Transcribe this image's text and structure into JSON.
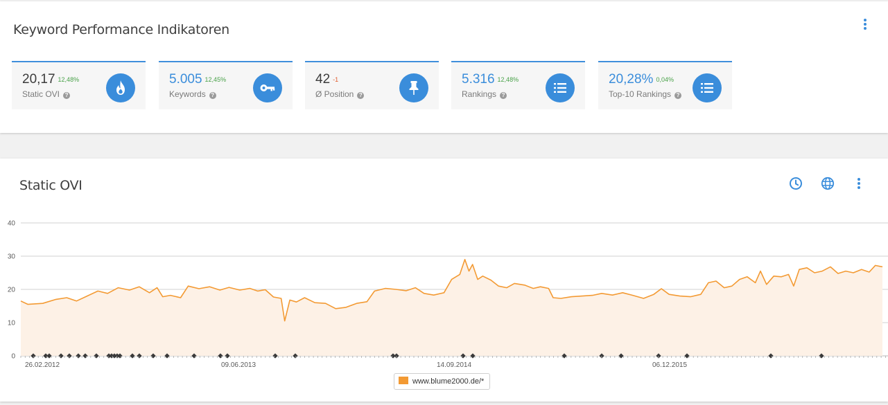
{
  "kpi": {
    "title": "Keyword Performance Indikatoren",
    "tiles": [
      {
        "value": "20,17",
        "delta": "12,48%",
        "label": "Static OVI",
        "icon": "flame-icon",
        "value_color": "dark"
      },
      {
        "value": "5.005",
        "delta": "12,45%",
        "label": "Keywords",
        "icon": "key-icon",
        "value_color": "blue"
      },
      {
        "value": "42",
        "delta": "-1",
        "label": "Ø Position",
        "icon": "pin-icon",
        "value_color": "dark"
      },
      {
        "value": "5.316",
        "delta": "12,48%",
        "label": "Rankings",
        "icon": "list-icon",
        "value_color": "blue"
      },
      {
        "value": "20,28%",
        "delta": "0,04%",
        "label": "Top-10 Rankings",
        "icon": "list-icon",
        "value_color": "blue"
      }
    ]
  },
  "chart_section": {
    "title": "Static OVI",
    "controls": [
      "clock-icon",
      "globe-icon",
      "more-vert-icon"
    ],
    "legend_label": "www.blume2000.de/*"
  },
  "colors": {
    "accent": "#3a8ddb",
    "series": "#f39a33",
    "fill": "#fdf1e6",
    "positive": "#48a148",
    "negative": "#e05b2c"
  },
  "chart_data": {
    "type": "area",
    "title": "",
    "xlabel": "",
    "ylabel": "",
    "ylim": [
      0,
      40
    ],
    "yticks": [
      0,
      10,
      20,
      30,
      40
    ],
    "x_tick_labels": [
      "26.02.2012",
      "09.06.2013",
      "14.09.2014",
      "06.12.2015"
    ],
    "x_start": "2012-02-01",
    "x_end": "2016-09-15",
    "series": [
      {
        "name": "www.blume2000.de/*",
        "points": [
          [
            "2012-02-01",
            16.5
          ],
          [
            "2012-02-15",
            15.5
          ],
          [
            "2012-03-15",
            15.8
          ],
          [
            "2012-04-10",
            17.0
          ],
          [
            "2012-05-01",
            17.5
          ],
          [
            "2012-05-20",
            16.5
          ],
          [
            "2012-06-10",
            18.0
          ],
          [
            "2012-07-01",
            19.5
          ],
          [
            "2012-07-20",
            18.8
          ],
          [
            "2012-08-10",
            20.5
          ],
          [
            "2012-09-01",
            19.8
          ],
          [
            "2012-09-20",
            20.8
          ],
          [
            "2012-10-10",
            19.0
          ],
          [
            "2012-10-25",
            20.5
          ],
          [
            "2012-11-05",
            17.8
          ],
          [
            "2012-11-20",
            18.2
          ],
          [
            "2012-12-10",
            17.5
          ],
          [
            "2012-12-25",
            21.0
          ],
          [
            "2013-01-15",
            20.2
          ],
          [
            "2013-02-05",
            20.8
          ],
          [
            "2013-02-25",
            19.8
          ],
          [
            "2013-03-15",
            20.6
          ],
          [
            "2013-04-05",
            19.8
          ],
          [
            "2013-04-25",
            20.3
          ],
          [
            "2013-05-10",
            19.5
          ],
          [
            "2013-05-25",
            19.9
          ],
          [
            "2013-06-10",
            17.7
          ],
          [
            "2013-06-25",
            17.3
          ],
          [
            "2013-07-02",
            10.5
          ],
          [
            "2013-07-12",
            16.8
          ],
          [
            "2013-07-25",
            16.2
          ],
          [
            "2013-08-10",
            17.5
          ],
          [
            "2013-08-30",
            16.0
          ],
          [
            "2013-09-20",
            15.8
          ],
          [
            "2013-10-10",
            14.2
          ],
          [
            "2013-10-30",
            14.6
          ],
          [
            "2013-11-20",
            15.8
          ],
          [
            "2013-12-10",
            16.3
          ],
          [
            "2013-12-25",
            19.5
          ],
          [
            "2014-01-15",
            20.3
          ],
          [
            "2014-02-05",
            20.0
          ],
          [
            "2014-02-25",
            19.6
          ],
          [
            "2014-03-15",
            20.5
          ],
          [
            "2014-04-01",
            18.8
          ],
          [
            "2014-04-20",
            18.3
          ],
          [
            "2014-05-10",
            19.0
          ],
          [
            "2014-05-25",
            23.0
          ],
          [
            "2014-06-10",
            24.5
          ],
          [
            "2014-06-20",
            29.0
          ],
          [
            "2014-06-28",
            25.5
          ],
          [
            "2014-07-05",
            27.5
          ],
          [
            "2014-07-15",
            23.0
          ],
          [
            "2014-07-25",
            24.0
          ],
          [
            "2014-08-10",
            22.8
          ],
          [
            "2014-08-25",
            21.0
          ],
          [
            "2014-09-10",
            20.5
          ],
          [
            "2014-09-25",
            21.8
          ],
          [
            "2014-10-15",
            21.3
          ],
          [
            "2014-11-01",
            20.3
          ],
          [
            "2014-11-15",
            20.8
          ],
          [
            "2014-12-01",
            20.3
          ],
          [
            "2014-12-10",
            17.5
          ],
          [
            "2014-12-25",
            17.3
          ],
          [
            "2015-01-15",
            17.8
          ],
          [
            "2015-02-05",
            18.0
          ],
          [
            "2015-02-25",
            18.2
          ],
          [
            "2015-03-15",
            18.8
          ],
          [
            "2015-04-05",
            18.3
          ],
          [
            "2015-04-25",
            19.0
          ],
          [
            "2015-05-15",
            18.2
          ],
          [
            "2015-06-05",
            17.3
          ],
          [
            "2015-06-25",
            18.5
          ],
          [
            "2015-07-10",
            20.2
          ],
          [
            "2015-07-25",
            18.5
          ],
          [
            "2015-08-15",
            18.0
          ],
          [
            "2015-09-05",
            17.8
          ],
          [
            "2015-09-25",
            18.5
          ],
          [
            "2015-10-10",
            22.0
          ],
          [
            "2015-10-25",
            22.5
          ],
          [
            "2015-11-10",
            20.5
          ],
          [
            "2015-11-25",
            21.0
          ],
          [
            "2015-12-10",
            23.0
          ],
          [
            "2015-12-25",
            23.8
          ],
          [
            "2016-01-10",
            22.0
          ],
          [
            "2016-01-20",
            25.5
          ],
          [
            "2016-02-01",
            21.5
          ],
          [
            "2016-02-15",
            24.0
          ],
          [
            "2016-03-01",
            23.8
          ],
          [
            "2016-03-15",
            24.5
          ],
          [
            "2016-03-25",
            21.0
          ],
          [
            "2016-04-05",
            26.0
          ],
          [
            "2016-04-20",
            26.5
          ],
          [
            "2016-05-05",
            25.0
          ],
          [
            "2016-05-20",
            25.5
          ],
          [
            "2016-06-05",
            26.8
          ],
          [
            "2016-06-20",
            24.8
          ],
          [
            "2016-07-05",
            25.5
          ],
          [
            "2016-07-20",
            25.0
          ],
          [
            "2016-08-05",
            26.0
          ],
          [
            "2016-08-20",
            25.2
          ],
          [
            "2016-09-01",
            27.2
          ],
          [
            "2016-09-15",
            26.8
          ]
        ]
      }
    ]
  }
}
